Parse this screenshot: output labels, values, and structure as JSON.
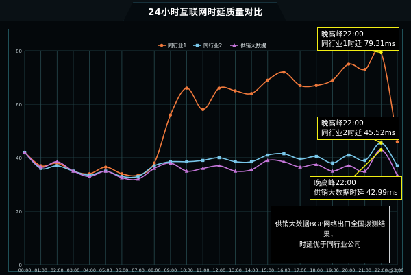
{
  "title": "24小时互联网时延质量对比",
  "colors": {
    "background": "#04080b",
    "grid": "#26494e",
    "axis_text": "#c5d2d6",
    "callout_border": "#f2ee14",
    "arrow": "#f2ee14"
  },
  "chart_data": {
    "type": "line",
    "title": "24小时互联网时延质量对比",
    "x": [
      "00:00",
      "01:00",
      "02:00",
      "03:00",
      "04:00",
      "05:00",
      "06:00",
      "07:00",
      "08:00",
      "09:00",
      "10:00",
      "11:00",
      "12:00",
      "13:00",
      "14:00",
      "15:00",
      "16:00",
      "17:00",
      "18:00",
      "19:00",
      "20:00",
      "21:00",
      "22:00",
      "23:00"
    ],
    "ylim": [
      0,
      80
    ],
    "yticks": [
      "0",
      "20",
      "40",
      "60",
      "80"
    ],
    "grid": true,
    "legend_position": "top-center",
    "series": [
      {
        "name": "同行业1",
        "color": "#f0793c",
        "marker": "circle",
        "values": [
          42,
          37,
          38,
          35,
          34,
          36.5,
          34,
          33.5,
          38,
          56,
          66,
          58,
          66,
          65,
          64,
          69,
          72,
          67,
          67,
          69,
          75,
          73,
          79.31,
          46
        ]
      },
      {
        "name": "同行业2",
        "color": "#79c7ea",
        "marker": "square",
        "values": [
          42,
          36,
          37,
          35,
          33.5,
          35,
          33,
          33,
          37,
          38.5,
          38.5,
          39,
          40,
          38.5,
          38.5,
          41,
          41.5,
          39.5,
          40.5,
          38,
          41,
          39,
          45.52,
          37
        ]
      },
      {
        "name": "供销大数据",
        "color": "#c576d9",
        "marker": "triangle",
        "values": [
          42,
          36.5,
          38.5,
          35,
          33,
          35,
          32.5,
          32,
          36,
          38,
          35,
          36,
          37,
          35,
          35.5,
          39,
          38.5,
          36.5,
          37.5,
          35,
          37,
          35,
          42.99,
          33.5
        ]
      }
    ]
  },
  "callouts": [
    {
      "id": "s1",
      "line1": "晚高峰22:00",
      "line2": "同行业1时延 79.31ms"
    },
    {
      "id": "s2",
      "line1": "晚高峰22:00",
      "line2": "同行业2时延 45.52ms"
    },
    {
      "id": "s3",
      "line1": "晚高峰22:00",
      "line2": "供销大数据时延 42.99ms"
    }
  ],
  "note": {
    "line1": "供销大数据BGP网络出口全国拨测结果，",
    "line2": "时延优于同行业公司"
  },
  "corner_text": "PG RT"
}
